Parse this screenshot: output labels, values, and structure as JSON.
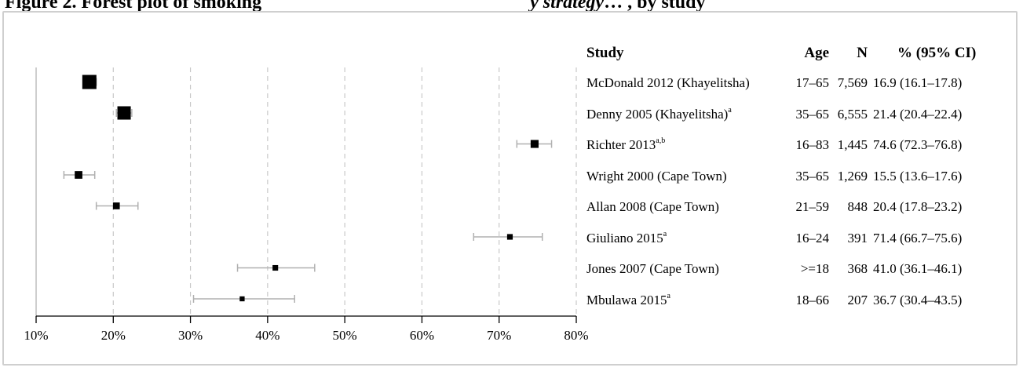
{
  "header": {
    "left": "Figure 2. Forest plot of smoking",
    "right": "y strategy",
    "suffix": "… , by study"
  },
  "table": {
    "headers": {
      "study": "Study",
      "age": "Age",
      "n": "N",
      "pct": "% (95% CI)"
    },
    "rows": [
      {
        "study": "McDonald 2012 (Khayelitsha)",
        "sup": "",
        "age": "17–65",
        "n": "7,569",
        "pct": "16.9 (16.1–17.8)"
      },
      {
        "study": "Denny 2005 (Khayelitsha)",
        "sup": "a",
        "age": "35–65",
        "n": "6,555",
        "pct": "21.4 (20.4–22.4)"
      },
      {
        "study": "Richter 2013",
        "sup": "a,b",
        "age": "16–83",
        "n": "1,445",
        "pct": "74.6 (72.3–76.8)"
      },
      {
        "study": "Wright 2000 (Cape Town)",
        "sup": "",
        "age": "35–65",
        "n": "1,269",
        "pct": "15.5 (13.6–17.6)"
      },
      {
        "study": "Allan 2008 (Cape Town)",
        "sup": "",
        "age": "21–59",
        "n": "848",
        "pct": "20.4 (17.8–23.2)"
      },
      {
        "study": "Giuliano 2015",
        "sup": "a",
        "age": "16–24",
        "n": "391",
        "pct": "71.4 (66.7–75.6)"
      },
      {
        "study": "Jones 2007 (Cape Town)",
        "sup": "",
        "age": ">=18",
        "n": "368",
        "pct": "41.0 (36.1–46.1)"
      },
      {
        "study": "Mbulawa 2015",
        "sup": "a",
        "age": "18–66",
        "n": "207",
        "pct": "36.7 (30.4–43.5)"
      }
    ]
  },
  "chart_data": {
    "type": "scatter",
    "subtype": "forest",
    "xlim": [
      10,
      80
    ],
    "xticks": [
      10,
      20,
      30,
      40,
      50,
      60,
      70,
      80
    ],
    "xtick_labels": [
      "10%",
      "20%",
      "30%",
      "40%",
      "50%",
      "60%",
      "70%",
      "80%"
    ],
    "grid": "vertical dashed",
    "studies": [
      "McDonald 2012 (Khayelitsha)",
      "Denny 2005 (Khayelitsha)",
      "Richter 2013",
      "Wright 2000 (Cape Town)",
      "Allan 2008 (Cape Town)",
      "Giuliano 2015",
      "Jones 2007 (Cape Town)",
      "Mbulawa 2015"
    ],
    "estimate": [
      16.9,
      21.4,
      74.6,
      15.5,
      20.4,
      71.4,
      41.0,
      36.7
    ],
    "ci_low": [
      16.1,
      20.4,
      72.3,
      13.6,
      17.8,
      66.7,
      36.1,
      30.4
    ],
    "ci_high": [
      17.8,
      22.4,
      76.8,
      17.6,
      23.2,
      75.6,
      46.1,
      43.5
    ],
    "weight_n": [
      7569,
      6555,
      1445,
      1269,
      848,
      391,
      368,
      207
    ],
    "colors": {
      "marker": "#000000",
      "ci": "#b0b0b0",
      "grid": "#c8c8c8",
      "axis": "#000000"
    }
  }
}
